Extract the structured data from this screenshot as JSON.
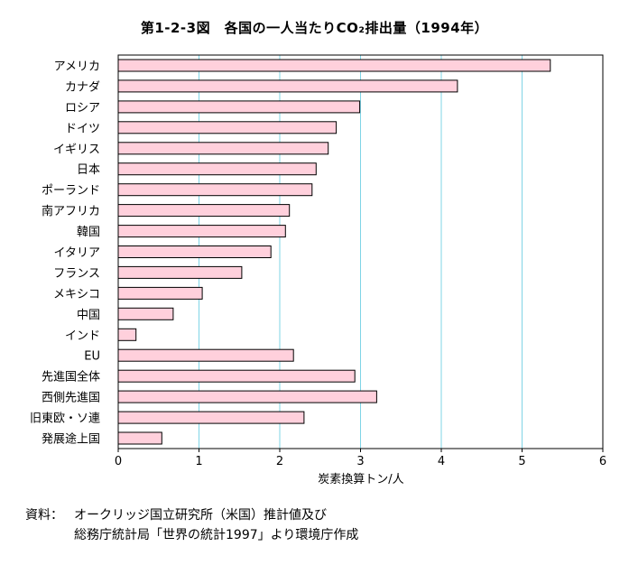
{
  "title": "第1-2-3図　各国の一人当たりCO₂排出量（1994年）",
  "chart_data": {
    "type": "bar",
    "orientation": "horizontal",
    "categories": [
      "アメリカ",
      "カナダ",
      "ロシア",
      "ドイツ",
      "イギリス",
      "日本",
      "ポーランド",
      "南アフリカ",
      "韓国",
      "イタリア",
      "フランス",
      "メキシコ",
      "中国",
      "インド",
      "EU",
      "先進国全体",
      "西側先進国",
      "旧東欧・ソ連",
      "発展途上国"
    ],
    "values": [
      5.35,
      4.2,
      2.99,
      2.7,
      2.6,
      2.45,
      2.4,
      2.12,
      2.07,
      1.89,
      1.53,
      1.04,
      0.68,
      0.22,
      2.17,
      2.93,
      3.2,
      2.3,
      0.54
    ],
    "xlabel": "炭素換算トン/人",
    "xlim": [
      0,
      6
    ],
    "xticks": [
      "0",
      "1",
      "2",
      "3",
      "4",
      "5",
      "6"
    ],
    "grid": "vertical",
    "colors": {
      "bar_fill": "#ffd0dc",
      "bar_stroke": "#000000",
      "grid": "#7fd4e6"
    }
  },
  "source": {
    "label": "資料：",
    "line1": "オークリッジ国立研究所（米国）推計値及び",
    "line2": "総務庁統計局「世界の統計1997」より環境庁作成"
  }
}
